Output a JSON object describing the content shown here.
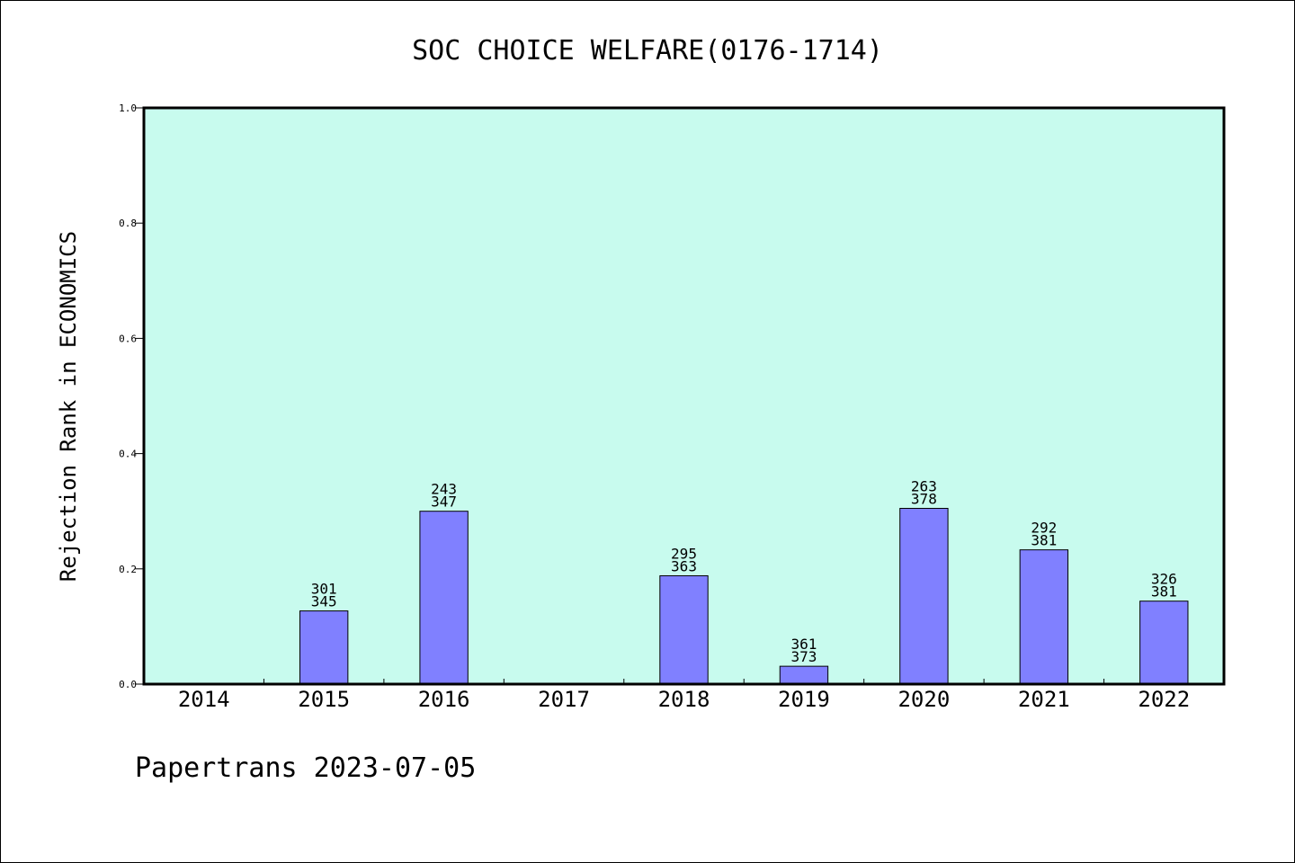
{
  "chart_data": {
    "type": "bar",
    "title": "SOC CHOICE WELFARE(0176-1714)",
    "ylabel": "Rejection Rank in ECONOMICS",
    "xlabel": "",
    "footer": "Papertrans 2023-07-05",
    "ylim": [
      0,
      1.0
    ],
    "yticks": [
      "0.0",
      "0.2",
      "0.4",
      "0.6",
      "0.8",
      "1.0"
    ],
    "categories": [
      "2014",
      "2015",
      "2016",
      "2017",
      "2018",
      "2019",
      "2020",
      "2021",
      "2022"
    ],
    "values": [
      null,
      0.127,
      0.3,
      null,
      0.188,
      0.031,
      0.305,
      0.233,
      0.144
    ],
    "labels_top": [
      null,
      "301",
      "243",
      null,
      "295",
      "361",
      "263",
      "292",
      "326"
    ],
    "labels_bottom": [
      null,
      "345",
      "347",
      null,
      "363",
      "373",
      "378",
      "381",
      "381"
    ],
    "grid": false,
    "colors": {
      "plot_background": "#c8fbee",
      "bar_fill": "#8080ff",
      "bar_stroke": "#000000",
      "axis": "#000000"
    }
  }
}
